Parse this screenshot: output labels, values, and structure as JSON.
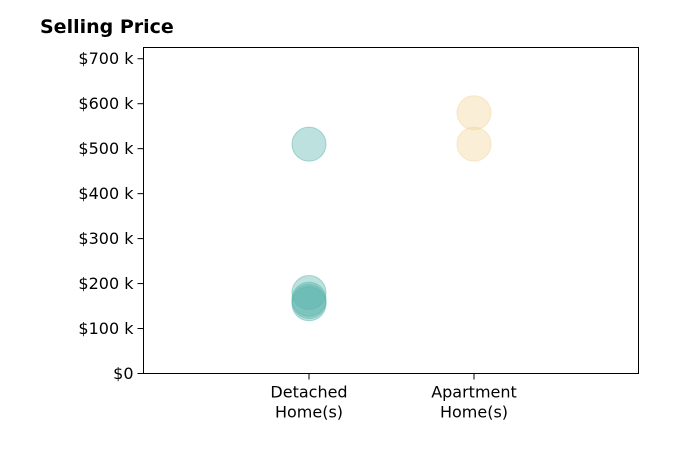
{
  "chart_data": {
    "type": "scatter",
    "title": "Selling Price",
    "categories": [
      "Detached\nHome(s)",
      "Apartment\nHome(s)"
    ],
    "y_tick_labels": [
      "$0",
      "$100 k",
      "$200 k",
      "$300 k",
      "$400 k",
      "$500 k",
      "$600 k",
      "$700 k"
    ],
    "y_ticks": [
      0,
      100000,
      200000,
      300000,
      400000,
      500000,
      600000,
      700000
    ],
    "ylim": [
      0,
      725000
    ],
    "grid": false,
    "series": [
      {
        "category_index": 0,
        "color": "#5bb5ac",
        "values": [
          510000,
          180000,
          165000,
          160000,
          155000
        ]
      },
      {
        "category_index": 1,
        "color": "#f2d59a",
        "values": [
          580000,
          510000
        ]
      }
    ]
  }
}
